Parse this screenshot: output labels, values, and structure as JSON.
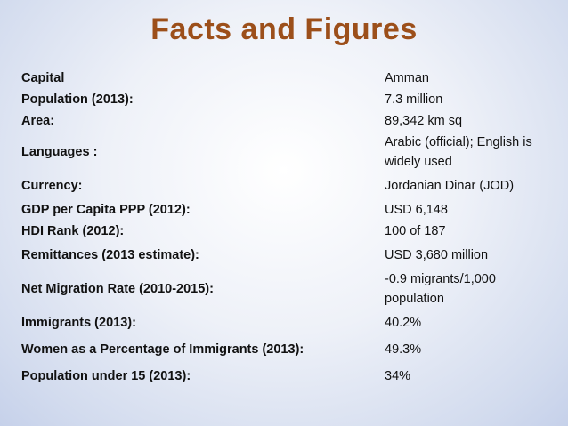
{
  "title": "Facts and Figures",
  "facts": [
    {
      "label": "Capital",
      "value": "Amman"
    },
    {
      "label": "Population (2013):",
      "value": "7.3 million"
    },
    {
      "label": "Area:",
      "value": "89,342 km sq"
    },
    {
      "label": "Languages :",
      "value": "Arabic (official); English is widely used"
    },
    {
      "label": "Currency:",
      "value": "Jordanian Dinar (JOD)"
    },
    {
      "label": "GDP per Capita PPP  (2012):",
      "value": "USD 6,148"
    },
    {
      "label": "HDI Rank (2012):",
      "value": "100 of 187"
    },
    {
      "label": "Remittances (2013 estimate):",
      "value": "USD 3,680 million"
    },
    {
      "label": "Net Migration Rate (2010-2015):",
      "value": "-0.9 migrants/1,000 population"
    },
    {
      "label": "Immigrants (2013):",
      "value": "40.2%"
    },
    {
      "label": "Women as a Percentage of Immigrants  (2013):",
      "value": "49.3%"
    },
    {
      "label": "Population under 15 (2013):",
      "value": "34%"
    }
  ]
}
